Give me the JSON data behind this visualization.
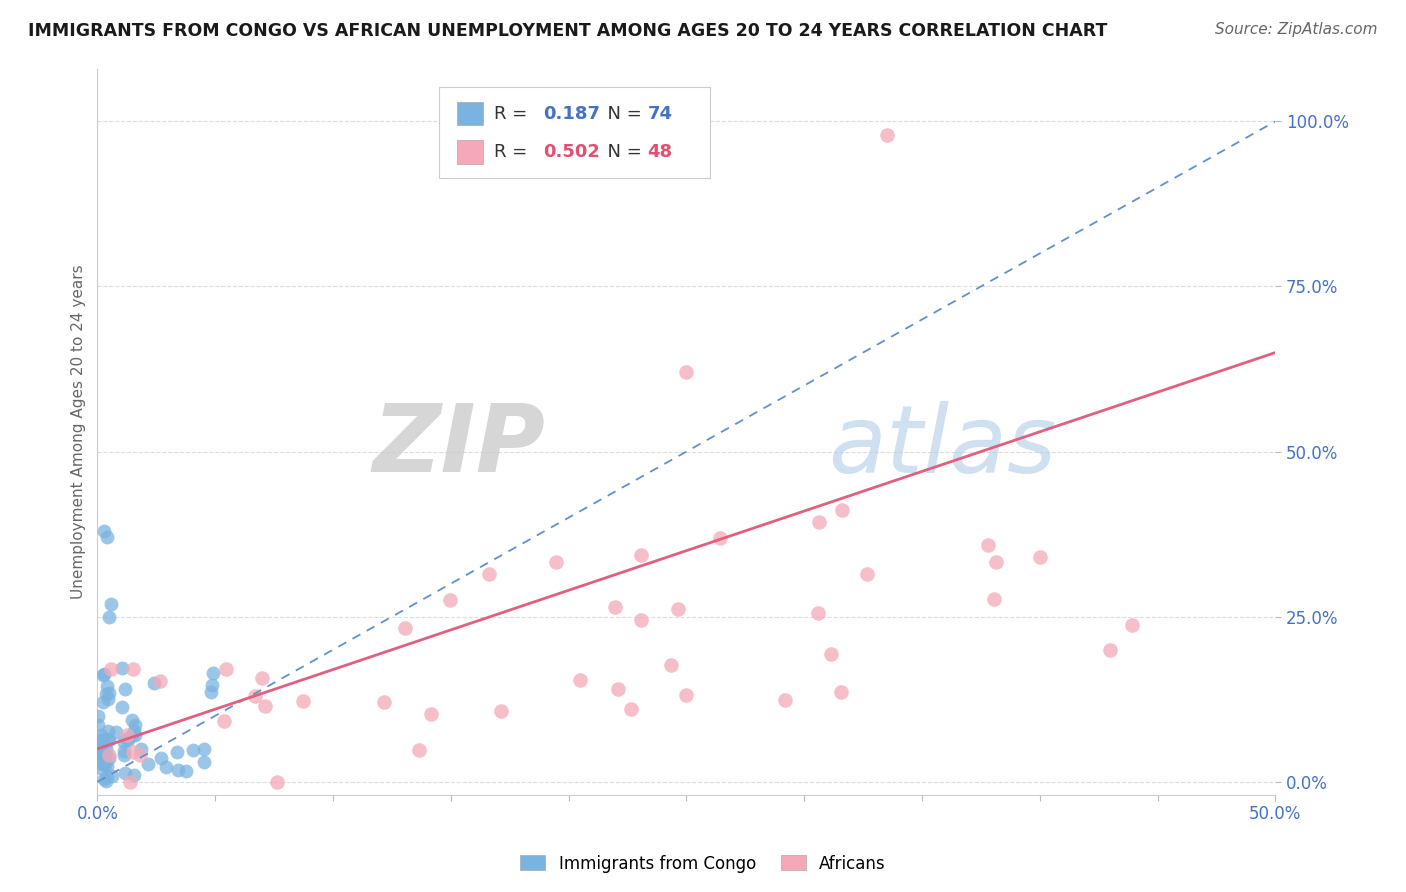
{
  "title": "IMMIGRANTS FROM CONGO VS AFRICAN UNEMPLOYMENT AMONG AGES 20 TO 24 YEARS CORRELATION CHART",
  "source": "Source: ZipAtlas.com",
  "ylabel": "Unemployment Among Ages 20 to 24 years",
  "xlim": [
    0.0,
    0.5
  ],
  "ylim": [
    -0.02,
    1.08
  ],
  "xtick_positions": [
    0.0,
    0.05,
    0.1,
    0.15,
    0.2,
    0.25,
    0.3,
    0.35,
    0.4,
    0.45,
    0.5
  ],
  "xtick_labels": [
    "0.0%",
    "",
    "",
    "",
    "",
    "",
    "",
    "",
    "",
    "",
    "50.0%"
  ],
  "ytick_right_vals": [
    0.0,
    0.25,
    0.5,
    0.75,
    1.0
  ],
  "ytick_right_labels": [
    "0.0%",
    "25.0%",
    "50.0%",
    "75.0%",
    "100.0%"
  ],
  "blue_R": 0.187,
  "blue_N": 74,
  "pink_R": 0.502,
  "pink_N": 48,
  "blue_color": "#7bb3e0",
  "pink_color": "#f4a8b8",
  "blue_line_color": "#6090d0",
  "pink_line_color": "#e06080",
  "watermark_zip": "ZIP",
  "watermark_atlas": "atlas",
  "grid_color": "#dddddd"
}
